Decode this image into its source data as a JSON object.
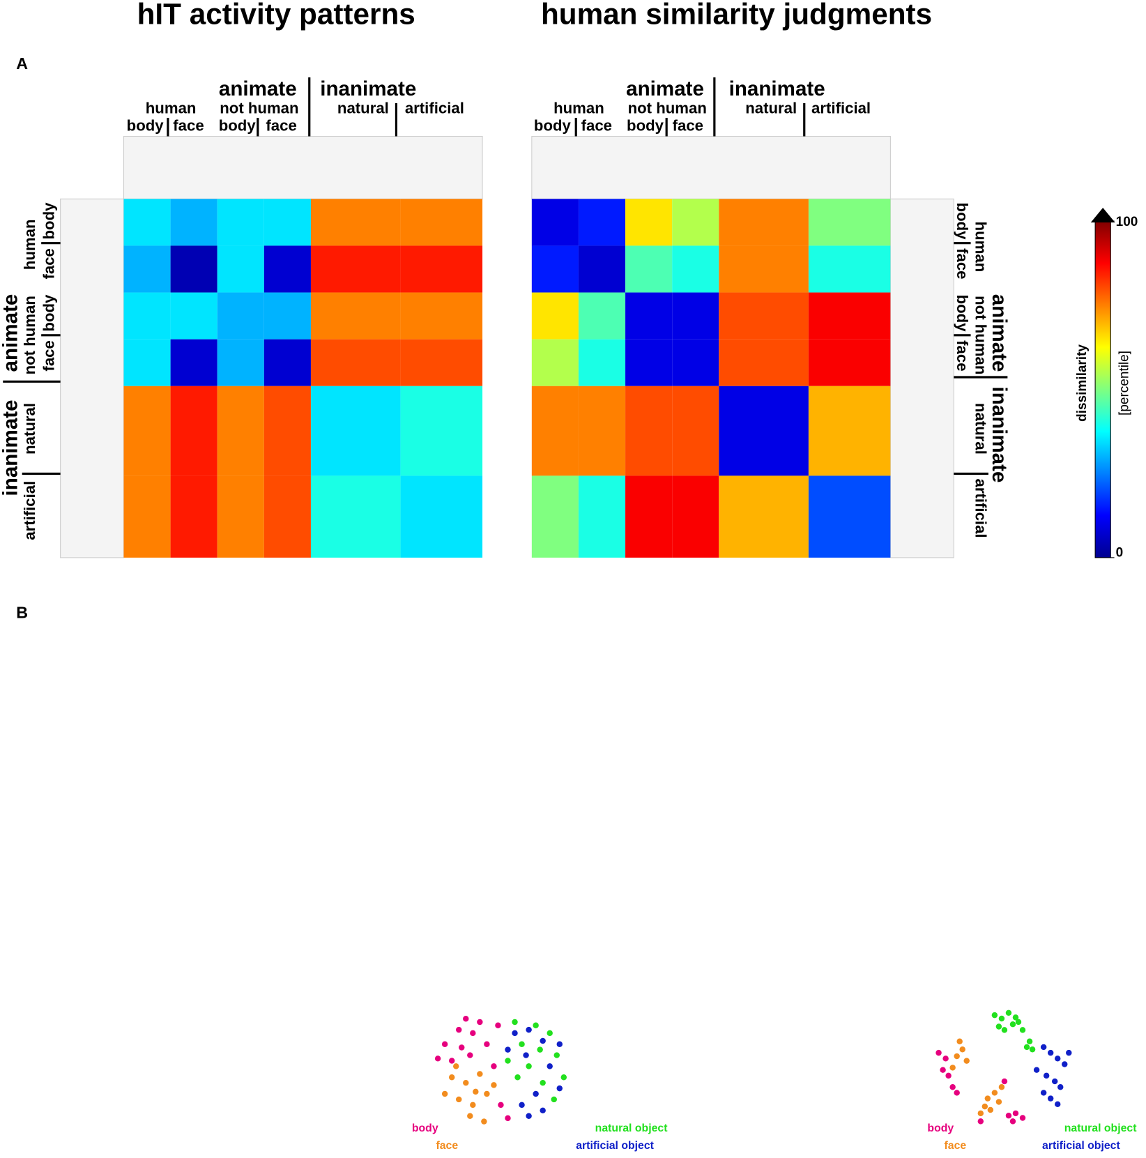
{
  "panel_labels": [
    "A",
    "B"
  ],
  "labels": {
    "animate": "animate",
    "inanimate": "inanimate",
    "human": "human",
    "not_human": "not human",
    "body": "body",
    "face": "face",
    "natural": "natural",
    "artificial": "artificial"
  },
  "matrices": [
    {
      "title": "hIT activity patterns",
      "type": "heatmap",
      "values": [
        [
          35,
          30,
          35,
          35,
          75,
          75
        ],
        [
          30,
          5,
          35,
          8,
          85,
          85
        ],
        [
          35,
          35,
          30,
          30,
          75,
          75
        ],
        [
          35,
          8,
          30,
          8,
          80,
          80
        ],
        [
          75,
          85,
          75,
          80,
          35,
          40
        ],
        [
          75,
          85,
          75,
          80,
          40,
          35
        ]
      ]
    },
    {
      "title": "human similarity judgments",
      "type": "heatmap",
      "values": [
        [
          10,
          15,
          65,
          55,
          75,
          50
        ],
        [
          15,
          8,
          45,
          40,
          75,
          40
        ],
        [
          65,
          45,
          10,
          10,
          80,
          88
        ],
        [
          55,
          40,
          10,
          10,
          80,
          88
        ],
        [
          75,
          75,
          80,
          80,
          10,
          70
        ],
        [
          50,
          40,
          88,
          88,
          70,
          20
        ]
      ]
    }
  ],
  "colorbar": {
    "label": "dissimilarity",
    "unit": "[percentile]",
    "ticks": [
      0,
      100
    ],
    "lim": [
      0,
      100
    ]
  },
  "mds": [
    {
      "type": "scatter",
      "xlim": [
        0,
        100
      ],
      "ylim": [
        0,
        100
      ],
      "series": [
        {
          "name": "body",
          "color": "#e6007e",
          "x": [
            25,
            35,
            20,
            30,
            10,
            22,
            5,
            15,
            28,
            40,
            45,
            50,
            55,
            48
          ],
          "y": [
            98,
            95,
            88,
            85,
            75,
            72,
            62,
            60,
            65,
            75,
            55,
            20,
            8,
            92
          ]
        },
        {
          "name": "face",
          "color": "#f28c1e",
          "x": [
            15,
            25,
            35,
            10,
            20,
            30,
            40,
            28,
            38,
            45,
            18,
            32
          ],
          "y": [
            45,
            40,
            48,
            30,
            25,
            20,
            30,
            10,
            5,
            38,
            55,
            32
          ]
        },
        {
          "name": "natural object",
          "color": "#22e01e",
          "x": [
            60,
            75,
            85,
            65,
            78,
            90,
            70,
            95,
            80,
            62,
            88,
            55
          ],
          "y": [
            95,
            92,
            85,
            75,
            70,
            65,
            55,
            45,
            40,
            45,
            25,
            60
          ]
        },
        {
          "name": "artificial object",
          "color": "#1020c8",
          "x": [
            60,
            70,
            80,
            92,
            55,
            68,
            85,
            75,
            65,
            80,
            70,
            92
          ],
          "y": [
            85,
            88,
            78,
            75,
            70,
            65,
            55,
            30,
            20,
            15,
            10,
            35
          ]
        }
      ]
    },
    {
      "type": "scatter",
      "xlim": [
        0,
        100
      ],
      "ylim": [
        0,
        100
      ],
      "series": [
        {
          "name": "body",
          "color": "#e6007e",
          "x": [
            5,
            10,
            8,
            12,
            15,
            18,
            55,
            60,
            65,
            58,
            35,
            52
          ],
          "y": [
            65,
            60,
            50,
            45,
            35,
            30,
            10,
            12,
            8,
            5,
            5,
            40
          ]
        },
        {
          "name": "face",
          "color": "#f28c1e",
          "x": [
            20,
            22,
            18,
            25,
            15,
            40,
            45,
            38,
            42,
            48,
            50,
            35
          ],
          "y": [
            75,
            68,
            62,
            58,
            52,
            25,
            30,
            18,
            15,
            22,
            35,
            12
          ]
        },
        {
          "name": "natural object",
          "color": "#22e01e",
          "x": [
            45,
            50,
            55,
            60,
            48,
            58,
            65,
            70,
            68,
            62,
            52,
            72
          ],
          "y": [
            98,
            95,
            100,
            96,
            88,
            90,
            85,
            75,
            70,
            92,
            85,
            68
          ]
        },
        {
          "name": "artificial object",
          "color": "#1020c8",
          "x": [
            80,
            85,
            90,
            95,
            82,
            88,
            92,
            80,
            85,
            90,
            75,
            98
          ],
          "y": [
            70,
            65,
            60,
            55,
            45,
            40,
            35,
            30,
            25,
            20,
            50,
            65
          ]
        }
      ]
    }
  ]
}
